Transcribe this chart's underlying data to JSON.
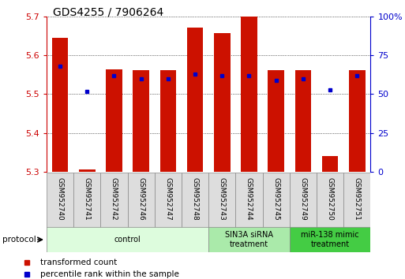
{
  "title": "GDS4255 / 7906264",
  "samples": [
    "GSM952740",
    "GSM952741",
    "GSM952742",
    "GSM952746",
    "GSM952747",
    "GSM952748",
    "GSM952743",
    "GSM952744",
    "GSM952745",
    "GSM952749",
    "GSM952750",
    "GSM952751"
  ],
  "red_values": [
    5.645,
    5.305,
    5.565,
    5.562,
    5.562,
    5.672,
    5.657,
    5.7,
    5.562,
    5.562,
    5.34,
    5.562
  ],
  "blue_values": [
    68,
    52,
    62,
    60,
    60,
    63,
    62,
    62,
    59,
    60,
    53,
    62
  ],
  "ymin": 5.3,
  "ymax": 5.7,
  "yticks": [
    5.3,
    5.4,
    5.5,
    5.6,
    5.7
  ],
  "right_yticks": [
    0,
    25,
    50,
    75,
    100
  ],
  "right_ytick_labels": [
    "0",
    "25",
    "50",
    "75",
    "100%"
  ],
  "groups": [
    {
      "label": "control",
      "start": 0,
      "end": 6,
      "color": "#ddfcdd"
    },
    {
      "label": "SIN3A siRNA\ntreatment",
      "start": 6,
      "end": 9,
      "color": "#aaeaaa"
    },
    {
      "label": "miR-138 mimic\ntreatment",
      "start": 9,
      "end": 12,
      "color": "#44cc44"
    }
  ],
  "bar_color": "#cc1100",
  "dot_color": "#0000cc",
  "bar_width": 0.6,
  "grid_color": "#000000",
  "background_color": "#ffffff",
  "left_axis_color": "#cc0000",
  "right_axis_color": "#0000cc",
  "sample_box_color": "#dddddd",
  "sample_box_edge": "#888888"
}
